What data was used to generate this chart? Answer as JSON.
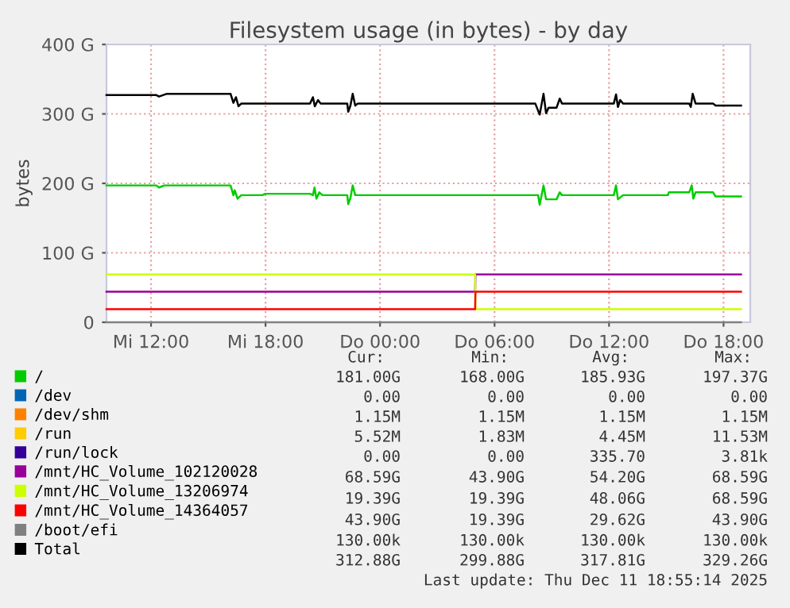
{
  "chart_data": {
    "type": "line",
    "title": "Filesystem usage (in bytes) - by day",
    "ylabel": "bytes",
    "xlim": [
      "2025-12-10T09:40",
      "2025-12-11T19:24"
    ],
    "ylim": [
      0,
      400
    ],
    "xticks": [
      {
        "value": "2025-12-10T12:00",
        "label": "Mi 12:00"
      },
      {
        "value": "2025-12-10T18:00",
        "label": "Mi 18:00"
      },
      {
        "value": "2025-12-11T00:00",
        "label": "Do 00:00"
      },
      {
        "value": "2025-12-11T06:00",
        "label": "Do 06:00"
      },
      {
        "value": "2025-12-11T12:00",
        "label": "Do 12:00"
      },
      {
        "value": "2025-12-11T18:00",
        "label": "Do 18:00"
      }
    ],
    "yticks": [
      0,
      {
        "value": 100,
        "label": "100 G"
      },
      {
        "value": 200,
        "label": "200 G"
      },
      {
        "value": 300,
        "label": "300 G"
      },
      {
        "value": 400,
        "label": "400 G"
      }
    ],
    "grid": true,
    "legend": "bottom",
    "marker": "none",
    "line_style": "solid",
    "series": [
      {
        "name": "/",
        "color": "#00cc00",
        "x": [
          "2025-12-10T09:40",
          "2025-12-10T12:17",
          "2025-12-10T12:25",
          "2025-12-10T12:42",
          "2025-12-10T16:10",
          "2025-12-10T16:19",
          "2025-12-10T16:23",
          "2025-12-10T16:32",
          "2025-12-10T16:44",
          "2025-12-10T17:50",
          "2025-12-10T17:59",
          "2025-12-10T20:20",
          "2025-12-10T20:29",
          "2025-12-10T20:34",
          "2025-12-10T20:40",
          "2025-12-10T20:49",
          "2025-12-10T20:59",
          "2025-12-10T22:17",
          "2025-12-10T22:20",
          "2025-12-10T22:27",
          "2025-12-10T22:34",
          "2025-12-10T22:42",
          "2025-12-11T08:17",
          "2025-12-11T08:22",
          "2025-12-11T08:34",
          "2025-12-11T08:42",
          "2025-12-11T09:15",
          "2025-12-11T09:25",
          "2025-12-11T09:32",
          "2025-12-11T12:15",
          "2025-12-11T12:22",
          "2025-12-11T12:28",
          "2025-12-11T12:44",
          "2025-12-11T15:05",
          "2025-12-11T15:08",
          "2025-12-11T16:12",
          "2025-12-11T16:20",
          "2025-12-11T16:25",
          "2025-12-11T16:32",
          "2025-12-11T17:27",
          "2025-12-11T17:35",
          "2025-12-11T18:55"
        ],
        "values": [
          197,
          197,
          194,
          197,
          197,
          183,
          190,
          178,
          183,
          183,
          185,
          185,
          183,
          194,
          178,
          187,
          183,
          183,
          170,
          179,
          197,
          183,
          183,
          169,
          197,
          177,
          177,
          187,
          183,
          183,
          197,
          177,
          183,
          183,
          187,
          187,
          197,
          178,
          187,
          187,
          181,
          181
        ]
      },
      {
        "name": "/dev",
        "color": "#0066b3"
      },
      {
        "name": "/dev/shm",
        "color": "#ff8000"
      },
      {
        "name": "/run",
        "color": "#ffcc00"
      },
      {
        "name": "/run/lock",
        "color": "#330099"
      },
      {
        "name": "/mnt/HC_Volume_102120028",
        "color": "#990099",
        "x": [
          "2025-12-10T09:40",
          "2025-12-11T04:59",
          "2025-12-11T05:00",
          "2025-12-11T18:55"
        ],
        "values": [
          44,
          44,
          69,
          69
        ]
      },
      {
        "name": "/mnt/HC_Volume_13206974",
        "color": "#ccff00",
        "x": [
          "2025-12-10T09:40",
          "2025-12-11T04:59",
          "2025-12-11T05:00",
          "2025-12-11T18:55"
        ],
        "values": [
          69,
          69,
          19,
          19
        ]
      },
      {
        "name": "/mnt/HC_Volume_14364057",
        "color": "#ff0000",
        "x": [
          "2025-12-10T09:40",
          "2025-12-11T04:59",
          "2025-12-11T05:00",
          "2025-12-11T18:55"
        ],
        "values": [
          19,
          19,
          44,
          44
        ]
      },
      {
        "name": "/boot/efi",
        "color": "#808080",
        "x": [
          "2025-12-10T09:40",
          "2025-12-11T18:55"
        ],
        "values": [
          0,
          0
        ]
      },
      {
        "name": "Total",
        "color": "#000000",
        "x": [
          "2025-12-10T09:40",
          "2025-12-10T12:17",
          "2025-12-10T12:25",
          "2025-12-10T12:50",
          "2025-12-10T16:10",
          "2025-12-10T16:19",
          "2025-12-10T16:27",
          "2025-12-10T16:35",
          "2025-12-10T16:44",
          "2025-12-10T20:20",
          "2025-12-10T20:29",
          "2025-12-10T20:35",
          "2025-12-10T20:45",
          "2025-12-10T20:53",
          "2025-12-10T22:17",
          "2025-12-10T22:20",
          "2025-12-10T22:27",
          "2025-12-10T22:34",
          "2025-12-10T22:42",
          "2025-12-10T22:50",
          "2025-12-11T08:08",
          "2025-12-11T08:22",
          "2025-12-11T08:34",
          "2025-12-11T08:42",
          "2025-12-11T08:50",
          "2025-12-11T09:15",
          "2025-12-11T09:25",
          "2025-12-11T09:32",
          "2025-12-11T12:15",
          "2025-12-11T12:22",
          "2025-12-11T12:28",
          "2025-12-11T12:35",
          "2025-12-11T12:44",
          "2025-12-11T16:12",
          "2025-12-11T16:17",
          "2025-12-11T16:23",
          "2025-12-11T16:32",
          "2025-12-11T17:27",
          "2025-12-11T17:35",
          "2025-12-11T18:55"
        ],
        "values": [
          327,
          327,
          325,
          329,
          329,
          316,
          324,
          311,
          315,
          315,
          324,
          311,
          320,
          315,
          315,
          303,
          312,
          329,
          312,
          315,
          315,
          299,
          329,
          301,
          309,
          309,
          322,
          315,
          315,
          328,
          310,
          320,
          315,
          315,
          310,
          329,
          315,
          315,
          312,
          312
        ]
      }
    ],
    "annotations": [
      "Cur:",
      "Min:",
      "Avg:",
      "Max:",
      "181.00G",
      "168.00G",
      "185.93G",
      "197.37G",
      "0.00",
      "0.00",
      "0.00",
      "0.00",
      "1.15M",
      "1.15M",
      "1.15M",
      "1.15M",
      "5.52M",
      "1.83M",
      "4.45M",
      "11.53M",
      "0.00",
      "0.00",
      "335.70",
      "3.81k",
      "68.59G",
      "43.90G",
      "54.20G",
      "68.59G",
      "19.39G",
      "19.39G",
      "48.06G",
      "68.59G",
      "43.90G",
      "19.39G",
      "29.62G",
      "43.90G",
      "130.00k",
      "130.00k",
      "130.00k",
      "130.00k",
      "312.88G",
      "299.88G",
      "317.81G",
      "329.26G",
      "Last update: Thu Dec 11 18:55:14 2025"
    ]
  }
}
